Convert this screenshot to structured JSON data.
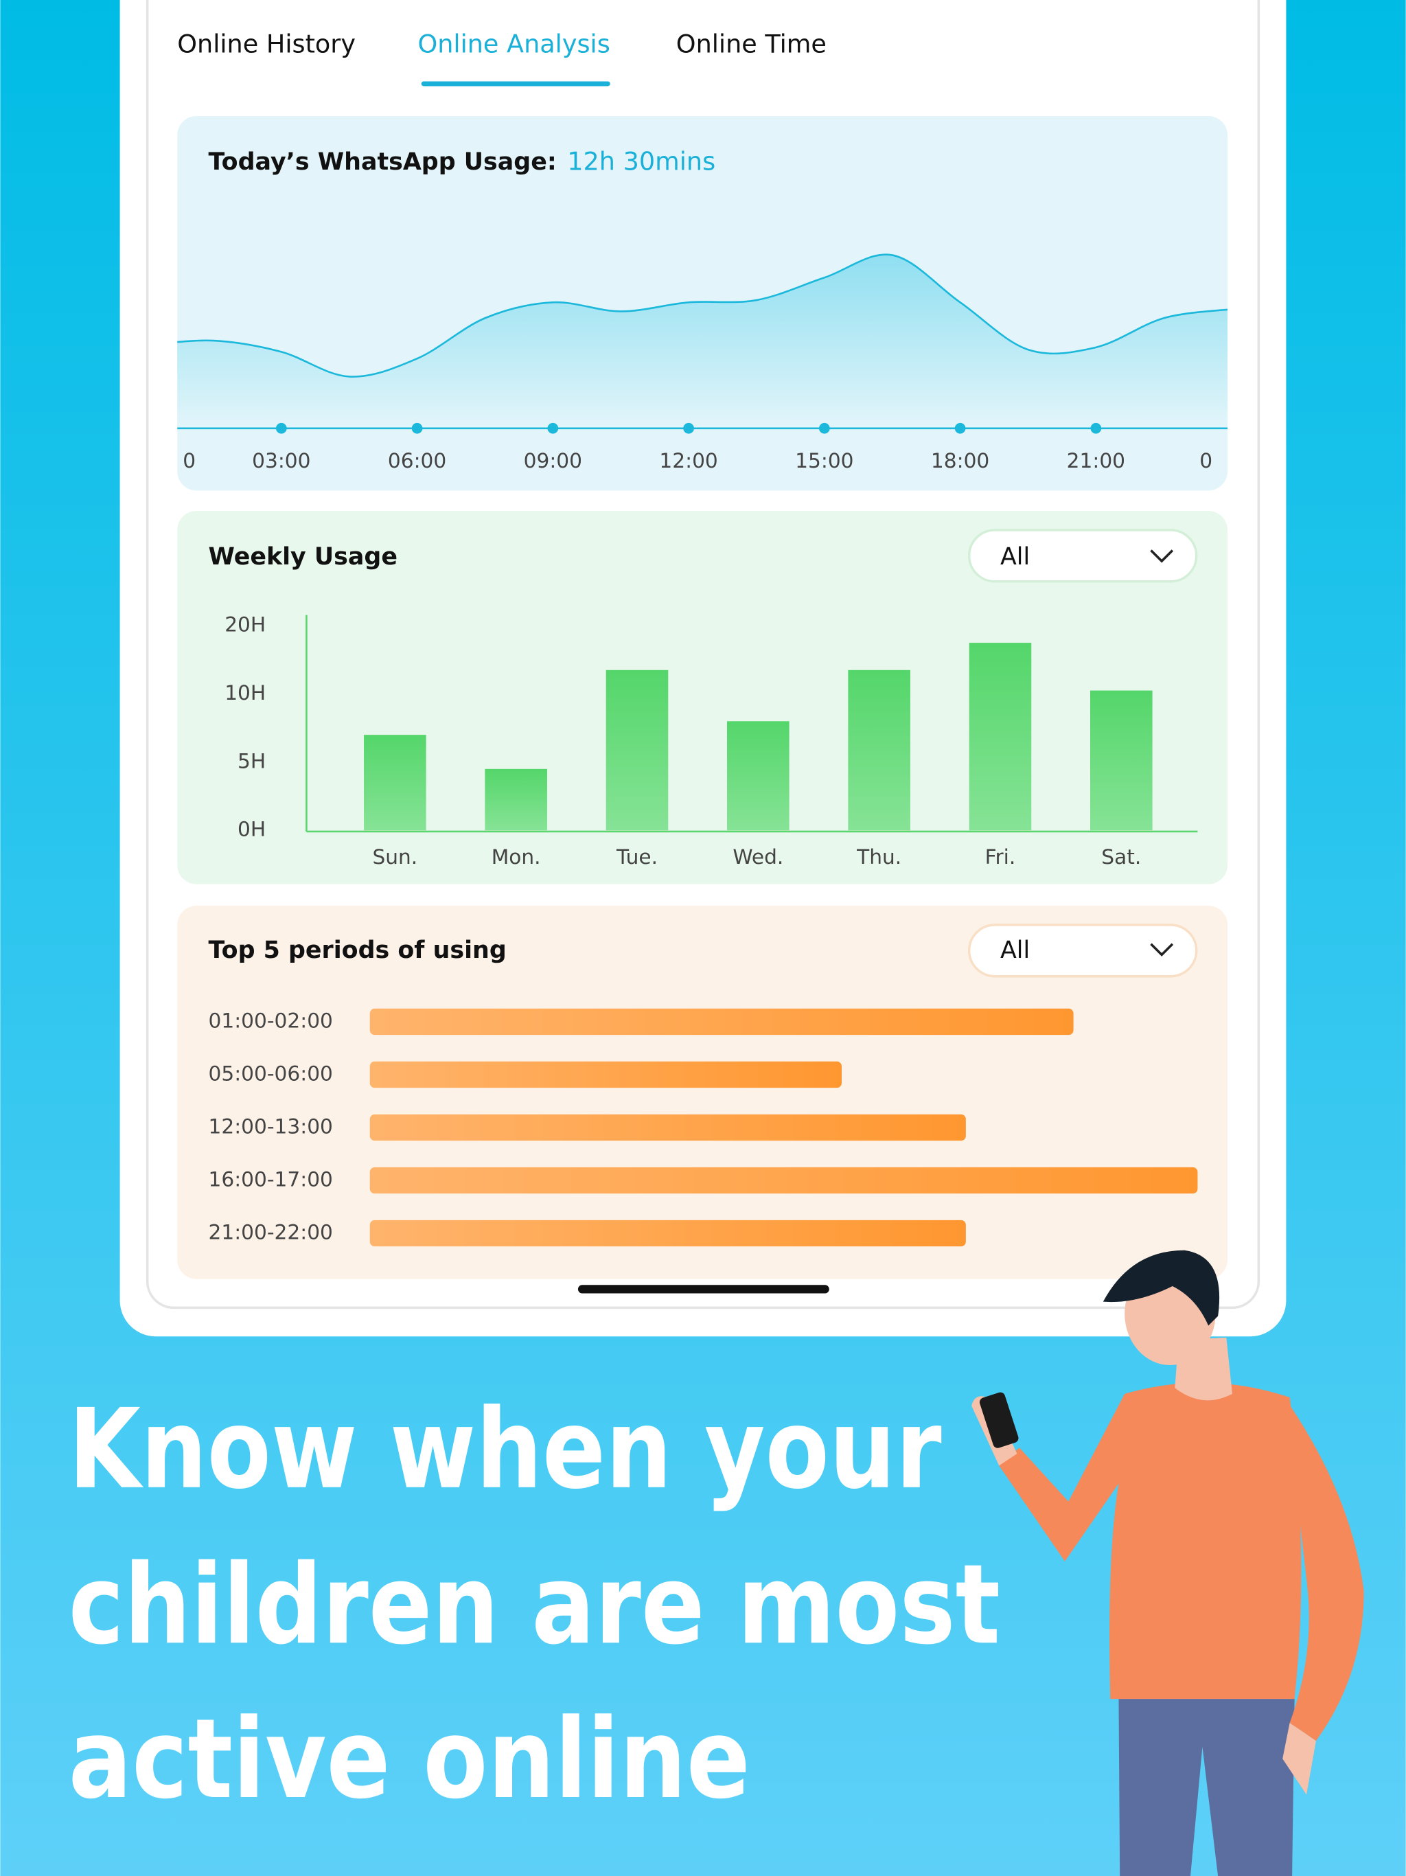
{
  "tabs": {
    "items": [
      "Online History",
      "Online Analysis",
      "Online Time"
    ],
    "active": 1
  },
  "chart_data": [
    {
      "type": "area",
      "title": "Today’s WhatsApp Usage:",
      "annotation": "12h 30mins",
      "x": [
        0,
        1.5,
        3,
        4.5,
        6,
        7.5,
        9,
        10.5,
        12,
        13.5,
        15,
        16.5,
        18,
        19.5,
        21,
        22.5,
        24
      ],
      "values": [
        37,
        39,
        34,
        23,
        31,
        49,
        56,
        52,
        56,
        57,
        67,
        77,
        56,
        35,
        36,
        49,
        53
      ],
      "xlim": [
        0,
        24
      ],
      "ylim": [
        0,
        100
      ],
      "xticks": [
        0,
        {
          "value": 3,
          "label": "03:00"
        },
        {
          "value": 6,
          "label": "06:00"
        },
        {
          "value": 9,
          "label": "09:00"
        },
        {
          "value": 12,
          "label": "12:00"
        },
        {
          "value": 15,
          "label": "15:00"
        },
        {
          "value": 18,
          "label": "18:00"
        },
        {
          "value": 21,
          "label": "21:00"
        },
        {
          "value": 24,
          "label": "0"
        }
      ],
      "color": "#1bb8dc"
    },
    {
      "type": "bar",
      "title": "Weekly Usage",
      "filter": "All",
      "categories": [
        "Sun.",
        "Mon.",
        "Tue.",
        "Wed.",
        "Thu.",
        "Fri.",
        "Sat."
      ],
      "values": [
        7,
        4.5,
        13.5,
        8,
        13.5,
        17.5,
        10.5
      ],
      "ylim": [
        0,
        20
      ],
      "yticks": [
        {
          "value": 0,
          "label": "0H"
        },
        {
          "value": 5,
          "label": "5H"
        },
        {
          "value": 10,
          "label": "10H"
        },
        {
          "value": 20,
          "label": "20H"
        }
      ],
      "color": "#5cd66e"
    },
    {
      "type": "hbar",
      "title": "Top 5 periods of using",
      "filter": "All",
      "categories": [
        "01:00-02:00",
        "05:00-06:00",
        "12:00-13:00",
        "16:00-17:00",
        "21:00-22:00"
      ],
      "values": [
        85,
        57,
        72,
        100,
        72
      ],
      "xlim": [
        0,
        100
      ],
      "color": "#ff9a3c"
    }
  ],
  "headline": [
    "Know when your",
    "children are most",
    "active online"
  ]
}
